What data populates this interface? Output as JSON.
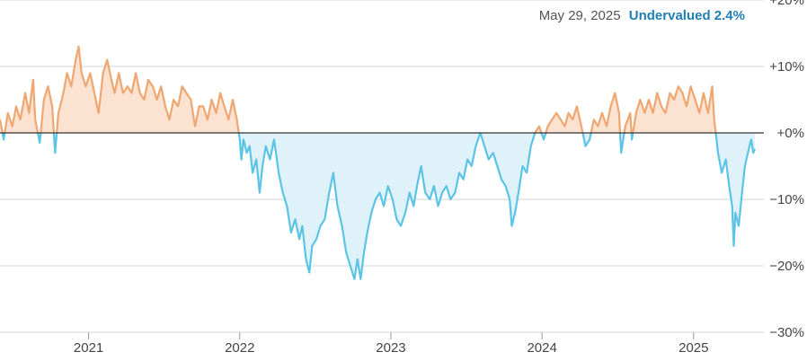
{
  "header": {
    "date": "May 29, 2025",
    "status": "Undervalued",
    "status_value": "2.4%"
  },
  "colors": {
    "overvalued_line": "#f0a670",
    "overvalued_fill": "#fce2d1",
    "undervalued_line": "#5bc4e6",
    "undervalued_fill": "#dff2f9",
    "zero_line": "#333333",
    "grid": "#d6d6d6",
    "status_text": "#1f7fb3"
  },
  "chart_data": {
    "type": "area",
    "title": "",
    "xlabel": "",
    "ylabel": "",
    "ylim": [
      -30,
      20
    ],
    "y_ticks": [
      20,
      10,
      0,
      -10,
      -20,
      -30
    ],
    "y_tick_labels": [
      "+20%",
      "+10%",
      "+0%",
      "−10%",
      "−20%",
      "−30%"
    ],
    "x_tick_labels": [
      "2021",
      "2022",
      "2023",
      "2024",
      "2025"
    ],
    "grid": true,
    "series": [
      {
        "points": [
          [
            "2020-06-01",
            2
          ],
          [
            "2020-06-10",
            -1
          ],
          [
            "2020-06-20",
            3
          ],
          [
            "2020-07-01",
            1
          ],
          [
            "2020-07-10",
            4
          ],
          [
            "2020-07-20",
            2
          ],
          [
            "2020-08-01",
            6
          ],
          [
            "2020-08-10",
            3
          ],
          [
            "2020-08-20",
            8
          ],
          [
            "2020-08-25",
            2
          ],
          [
            "2020-09-05",
            -1.5
          ],
          [
            "2020-09-15",
            5
          ],
          [
            "2020-09-25",
            7
          ],
          [
            "2020-10-05",
            4
          ],
          [
            "2020-10-12",
            -3
          ],
          [
            "2020-10-20",
            3
          ],
          [
            "2020-11-01",
            6
          ],
          [
            "2020-11-10",
            9
          ],
          [
            "2020-11-20",
            7
          ],
          [
            "2020-12-01",
            11
          ],
          [
            "2020-12-08",
            13
          ],
          [
            "2020-12-15",
            9
          ],
          [
            "2020-12-25",
            7
          ],
          [
            "2021-01-05",
            9
          ],
          [
            "2021-01-15",
            6
          ],
          [
            "2021-01-25",
            3
          ],
          [
            "2021-02-05",
            9
          ],
          [
            "2021-02-15",
            11
          ],
          [
            "2021-02-25",
            8
          ],
          [
            "2021-03-05",
            6
          ],
          [
            "2021-03-15",
            9
          ],
          [
            "2021-03-25",
            6
          ],
          [
            "2021-04-05",
            7
          ],
          [
            "2021-04-15",
            6
          ],
          [
            "2021-04-25",
            9
          ],
          [
            "2021-05-05",
            6
          ],
          [
            "2021-05-15",
            5
          ],
          [
            "2021-05-25",
            8
          ],
          [
            "2021-06-05",
            7
          ],
          [
            "2021-06-15",
            5
          ],
          [
            "2021-06-25",
            7
          ],
          [
            "2021-07-05",
            4
          ],
          [
            "2021-07-15",
            2
          ],
          [
            "2021-07-25",
            5
          ],
          [
            "2021-08-05",
            4
          ],
          [
            "2021-08-15",
            7
          ],
          [
            "2021-08-25",
            6
          ],
          [
            "2021-09-05",
            5
          ],
          [
            "2021-09-15",
            1
          ],
          [
            "2021-09-25",
            4
          ],
          [
            "2021-10-05",
            4
          ],
          [
            "2021-10-15",
            2
          ],
          [
            "2021-10-25",
            5
          ],
          [
            "2021-11-05",
            3
          ],
          [
            "2021-11-15",
            6
          ],
          [
            "2021-11-25",
            4
          ],
          [
            "2021-12-05",
            2
          ],
          [
            "2021-12-15",
            5
          ],
          [
            "2021-12-25",
            2
          ],
          [
            "2022-01-01",
            -1
          ],
          [
            "2022-01-05",
            -4
          ],
          [
            "2022-01-10",
            -1
          ],
          [
            "2022-01-18",
            -3
          ],
          [
            "2022-01-25",
            -2
          ],
          [
            "2022-02-01",
            -6
          ],
          [
            "2022-02-10",
            -4
          ],
          [
            "2022-02-18",
            -9
          ],
          [
            "2022-02-25",
            -5
          ],
          [
            "2022-03-05",
            -2
          ],
          [
            "2022-03-15",
            -4
          ],
          [
            "2022-03-25",
            -1
          ],
          [
            "2022-04-05",
            -6
          ],
          [
            "2022-04-15",
            -9
          ],
          [
            "2022-04-25",
            -11
          ],
          [
            "2022-05-05",
            -15
          ],
          [
            "2022-05-15",
            -13
          ],
          [
            "2022-05-25",
            -16
          ],
          [
            "2022-06-01",
            -14
          ],
          [
            "2022-06-10",
            -19
          ],
          [
            "2022-06-18",
            -21
          ],
          [
            "2022-06-25",
            -17
          ],
          [
            "2022-07-05",
            -16
          ],
          [
            "2022-07-15",
            -14
          ],
          [
            "2022-07-25",
            -13
          ],
          [
            "2022-08-05",
            -9
          ],
          [
            "2022-08-15",
            -6
          ],
          [
            "2022-08-25",
            -11
          ],
          [
            "2022-09-05",
            -14
          ],
          [
            "2022-09-15",
            -18
          ],
          [
            "2022-09-25",
            -20
          ],
          [
            "2022-10-05",
            -22
          ],
          [
            "2022-10-12",
            -19
          ],
          [
            "2022-10-20",
            -22
          ],
          [
            "2022-10-28",
            -18
          ],
          [
            "2022-11-05",
            -15
          ],
          [
            "2022-11-15",
            -12
          ],
          [
            "2022-11-25",
            -10
          ],
          [
            "2022-12-05",
            -9
          ],
          [
            "2022-12-15",
            -11
          ],
          [
            "2022-12-25",
            -8
          ],
          [
            "2023-01-05",
            -10
          ],
          [
            "2023-01-15",
            -13
          ],
          [
            "2023-01-25",
            -14
          ],
          [
            "2023-02-05",
            -12
          ],
          [
            "2023-02-15",
            -9
          ],
          [
            "2023-02-25",
            -11
          ],
          [
            "2023-03-05",
            -8
          ],
          [
            "2023-03-15",
            -5
          ],
          [
            "2023-03-25",
            -9
          ],
          [
            "2023-04-05",
            -10
          ],
          [
            "2023-04-15",
            -8
          ],
          [
            "2023-04-25",
            -11
          ],
          [
            "2023-05-05",
            -9
          ],
          [
            "2023-05-15",
            -8
          ],
          [
            "2023-05-25",
            -10
          ],
          [
            "2023-06-05",
            -9
          ],
          [
            "2023-06-15",
            -6
          ],
          [
            "2023-06-25",
            -7
          ],
          [
            "2023-07-05",
            -4
          ],
          [
            "2023-07-15",
            -5
          ],
          [
            "2023-07-25",
            -2
          ],
          [
            "2023-08-05",
            0
          ],
          [
            "2023-08-15",
            -2
          ],
          [
            "2023-08-25",
            -4
          ],
          [
            "2023-09-05",
            -3
          ],
          [
            "2023-09-15",
            -5
          ],
          [
            "2023-09-25",
            -7
          ],
          [
            "2023-10-05",
            -8
          ],
          [
            "2023-10-15",
            -10
          ],
          [
            "2023-10-20",
            -14
          ],
          [
            "2023-10-28",
            -12
          ],
          [
            "2023-11-05",
            -9
          ],
          [
            "2023-11-15",
            -5
          ],
          [
            "2023-11-25",
            -6
          ],
          [
            "2023-12-05",
            -2
          ],
          [
            "2023-12-15",
            0
          ],
          [
            "2023-12-25",
            1
          ],
          [
            "2024-01-05",
            -1
          ],
          [
            "2024-01-15",
            1
          ],
          [
            "2024-01-25",
            2
          ],
          [
            "2024-02-05",
            3
          ],
          [
            "2024-02-15",
            2
          ],
          [
            "2024-02-25",
            1
          ],
          [
            "2024-03-05",
            3
          ],
          [
            "2024-03-15",
            2
          ],
          [
            "2024-03-25",
            4
          ],
          [
            "2024-04-05",
            1
          ],
          [
            "2024-04-15",
            -2
          ],
          [
            "2024-04-25",
            -1
          ],
          [
            "2024-05-05",
            2
          ],
          [
            "2024-05-15",
            1
          ],
          [
            "2024-05-25",
            3
          ],
          [
            "2024-06-05",
            1
          ],
          [
            "2024-06-15",
            4
          ],
          [
            "2024-06-25",
            6
          ],
          [
            "2024-07-05",
            3
          ],
          [
            "2024-07-10",
            -3
          ],
          [
            "2024-07-20",
            1
          ],
          [
            "2024-08-01",
            3
          ],
          [
            "2024-08-05",
            -1
          ],
          [
            "2024-08-15",
            3
          ],
          [
            "2024-08-25",
            5
          ],
          [
            "2024-09-05",
            3
          ],
          [
            "2024-09-15",
            5
          ],
          [
            "2024-09-25",
            3
          ],
          [
            "2024-10-05",
            6
          ],
          [
            "2024-10-15",
            4
          ],
          [
            "2024-10-25",
            3
          ],
          [
            "2024-11-05",
            6
          ],
          [
            "2024-11-15",
            5
          ],
          [
            "2024-11-25",
            7
          ],
          [
            "2024-12-05",
            6
          ],
          [
            "2024-12-15",
            4
          ],
          [
            "2024-12-25",
            7
          ],
          [
            "2025-01-05",
            5
          ],
          [
            "2025-01-15",
            3
          ],
          [
            "2025-01-25",
            6
          ],
          [
            "2025-02-05",
            3
          ],
          [
            "2025-02-15",
            7
          ],
          [
            "2025-02-20",
            2
          ],
          [
            "2025-03-01",
            -3
          ],
          [
            "2025-03-10",
            -6
          ],
          [
            "2025-03-20",
            -4
          ],
          [
            "2025-03-28",
            -8
          ],
          [
            "2025-04-04",
            -11
          ],
          [
            "2025-04-08",
            -17
          ],
          [
            "2025-04-12",
            -12
          ],
          [
            "2025-04-20",
            -14
          ],
          [
            "2025-04-28",
            -9
          ],
          [
            "2025-05-05",
            -5
          ],
          [
            "2025-05-12",
            -3
          ],
          [
            "2025-05-20",
            -1
          ],
          [
            "2025-05-25",
            -3
          ],
          [
            "2025-05-29",
            -2.4
          ]
        ]
      }
    ]
  }
}
